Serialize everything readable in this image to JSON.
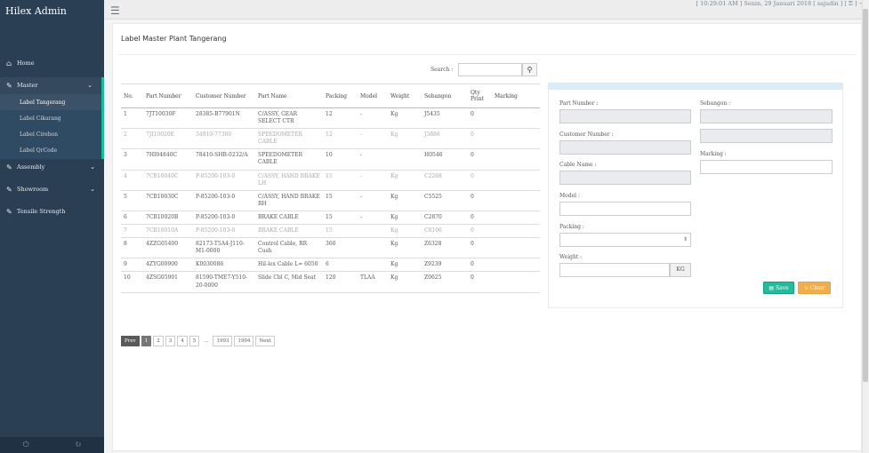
{
  "app": {
    "title": "Hilex Admin"
  },
  "topbar": {
    "status": "[ 10:29:01 AM ] Senin, 29 Januari 2018    [ sajudin ] [ ⚿ ] ⇥"
  },
  "sidebar": {
    "items": [
      {
        "label": "Home",
        "icon": "home-icon"
      },
      {
        "label": "Master",
        "icon": "edit-icon"
      },
      {
        "label": "Assembly",
        "icon": "edit-icon"
      },
      {
        "label": "Showroom",
        "icon": "edit-icon"
      },
      {
        "label": "Tensile Strength",
        "icon": "edit-icon"
      }
    ],
    "submenu": [
      "Label Tangerang",
      "Label Cikarang",
      "Label Cirebon",
      "Label QrCode"
    ]
  },
  "page": {
    "title": "Label Master Plant Tangerang"
  },
  "search": {
    "label": "Search :",
    "value": ""
  },
  "table": {
    "headers": [
      "No.",
      "Part Number",
      "Customer Number",
      "Part Name",
      "Packing",
      "Model",
      "Weight",
      "Sebangon",
      "Qty Print",
      "Marking"
    ],
    "rows": [
      {
        "no": "1",
        "part": "7JT10030F",
        "cust": "28385-B77901N",
        "name": "C/ASSY, GEAR SELECT CTR",
        "packing": "12",
        "model": "-",
        "weight": "Kg",
        "seb": "J5435",
        "qty": "0",
        "marking": "",
        "faded": false
      },
      {
        "no": "2",
        "part": "7JI10020E",
        "cust": "34910-77300",
        "name": "SPEEDOMETER CABLE",
        "packing": "12",
        "model": "-",
        "weight": "Kg",
        "seb": "J3886",
        "qty": "0",
        "marking": "",
        "faded": true
      },
      {
        "no": "3",
        "part": "7HI04840C",
        "cust": "78410-SHB-0232/A",
        "name": "SPEEDOMETER CABLE",
        "packing": "10",
        "model": "-",
        "weight": "",
        "seb": "H0546",
        "qty": "0",
        "marking": "",
        "faded": false
      },
      {
        "no": "4",
        "part": "7CB10040C",
        "cust": "P-85200-103-0",
        "name": "C/ASSY, HAND BRAKE LH",
        "packing": "15",
        "model": "-",
        "weight": "Kg",
        "seb": "C2268",
        "qty": "0",
        "marking": "",
        "faded": true
      },
      {
        "no": "5",
        "part": "7CB10030C",
        "cust": "P-85200-103-0",
        "name": "C/ASSY, HAND BRAKE RH",
        "packing": "15",
        "model": "-",
        "weight": "Kg",
        "seb": "C5525",
        "qty": "0",
        "marking": "",
        "faded": false
      },
      {
        "no": "6",
        "part": "7CB10020B",
        "cust": "P-85200-103-0",
        "name": "BRAKE CABLE",
        "packing": "15",
        "model": "-",
        "weight": "Kg",
        "seb": "C2870",
        "qty": "0",
        "marking": "",
        "faded": false
      },
      {
        "no": "7",
        "part": "7CB10010A",
        "cust": "P-85200-103-0",
        "name": "BRAKE CABLE",
        "packing": "15",
        "model": "",
        "weight": "Kg",
        "seb": "C0106",
        "qty": "0",
        "marking": "",
        "faded": true
      },
      {
        "no": "8",
        "part": "4ZZG05400",
        "cust": "82173-T5A4-J110-M1-0000",
        "name": "Control Cable, RR Cush",
        "packing": "360",
        "model": "",
        "weight": "Kg",
        "seb": "Z6328",
        "qty": "0",
        "marking": "",
        "faded": false
      },
      {
        "no": "9",
        "part": "4ZYG00900",
        "cust": "K0030086",
        "name": "Hil-lex Cable L= 6050",
        "packing": "6",
        "model": "",
        "weight": "Kg",
        "seb": "Z9239",
        "qty": "0",
        "marking": "",
        "faded": false
      },
      {
        "no": "10",
        "part": "4ZSG05901",
        "cust": "81590-TME7-Y510-20-0000",
        "name": "Slide Cbl C, Mid Seat",
        "packing": "120",
        "model": "TLAA",
        "weight": "Kg",
        "seb": "Z0625",
        "qty": "0",
        "marking": "",
        "faded": false
      }
    ]
  },
  "pager": {
    "prev": "Prev",
    "pages": [
      "1",
      "2",
      "3",
      "4",
      "5"
    ],
    "ellipsis": "...",
    "tail": [
      "1993",
      "1994"
    ],
    "next": "Next"
  },
  "form": {
    "part_number_label": "Part Number :",
    "customer_number_label": "Customer Number :",
    "cable_name_label": "Cable Name :",
    "model_label": "Model :",
    "packing_label": "Packing :",
    "weight_label": "Weight :",
    "weight_unit": "KG",
    "sebangon_label": "Sebangon :",
    "marking_label": "Marking :",
    "save_label": "Save",
    "clear_label": "Clear"
  },
  "colors": {
    "sidebar": "#2a3f54",
    "accent": "#1abb9c",
    "save": "#26b99a",
    "clear": "#f0ad4e"
  }
}
